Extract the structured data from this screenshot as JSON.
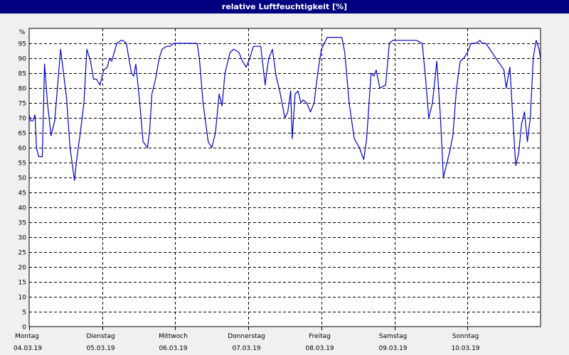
{
  "window": {
    "title": "relative Luftfeuchtigkeit [%]"
  },
  "colors": {
    "background": "#f0f0f0",
    "title_bar": "#000080",
    "plot_background": "#ffffff",
    "line": "#0000cc",
    "grid": "#000000"
  },
  "chart_data": {
    "type": "line",
    "title": "relative Luftfeuchtigkeit [%]",
    "xlabel": "",
    "ylabel": "%",
    "ylim": [
      0,
      100
    ],
    "xlim": [
      0,
      7
    ],
    "y_ticks": [
      0,
      5,
      10,
      15,
      20,
      25,
      30,
      35,
      40,
      45,
      50,
      55,
      60,
      65,
      70,
      75,
      80,
      85,
      90,
      95
    ],
    "x_ticks": [
      {
        "x": 0,
        "day": "Montag",
        "date": "04.03.19"
      },
      {
        "x": 1,
        "day": "Dienstag",
        "date": "05.03.19"
      },
      {
        "x": 2,
        "day": "Mittwoch",
        "date": "06.03.19"
      },
      {
        "x": 3,
        "day": "Donnerstag",
        "date": "07.03.19"
      },
      {
        "x": 4,
        "day": "Freitag",
        "date": "08.03.19"
      },
      {
        "x": 5,
        "day": "Samstag",
        "date": "09.03.19"
      },
      {
        "x": 6,
        "day": "Sonntag",
        "date": "10.03.19"
      }
    ],
    "grid": true,
    "legend": "none",
    "series": [
      {
        "x": [
          0,
          0.02,
          0.05,
          0.08,
          0.1,
          0.13,
          0.18,
          0.21,
          0.25,
          0.3,
          0.35,
          0.43,
          0.47,
          0.51,
          0.56,
          0.62,
          0.65,
          0.7,
          0.75,
          0.79,
          0.84,
          0.88,
          0.92,
          0.97,
          1.02,
          1.07,
          1.1,
          1.13,
          1.2,
          1.26,
          1.28,
          1.33,
          1.4,
          1.43,
          1.46,
          1.51,
          1.56,
          1.62,
          1.65,
          1.68,
          1.73,
          1.78,
          1.82,
          1.88,
          1.93,
          1.98,
          2.03,
          2.08,
          2.12,
          2.17,
          2.3,
          2.33,
          2.38,
          2.45,
          2.5,
          2.55,
          2.6,
          2.64,
          2.68,
          2.75,
          2.8,
          2.87,
          2.92,
          2.97,
          3.02,
          3.07,
          3.12,
          3.17,
          3.23,
          3.25,
          3.28,
          3.33,
          3.38,
          3.43,
          3.5,
          3.54,
          3.58,
          3.6,
          3.64,
          3.68,
          3.72,
          3.75,
          3.8,
          3.85,
          3.9,
          3.95,
          4.0,
          4.08,
          4.12,
          4.18,
          4.28,
          4.32,
          4.38,
          4.45,
          4.52,
          4.58,
          4.62,
          4.68,
          4.72,
          4.75,
          4.8,
          4.88,
          4.93,
          4.98,
          5.03,
          5.08,
          5.12,
          5.17,
          5.3,
          5.38,
          5.42,
          5.47,
          5.52,
          5.58,
          5.63,
          5.67,
          5.72,
          5.76,
          5.8,
          5.85,
          5.9,
          5.95,
          6.0,
          6.05,
          6.08,
          6.12,
          6.17,
          6.2,
          6.25,
          6.5,
          6.53,
          6.58,
          6.62,
          6.66,
          6.7,
          6.74,
          6.78,
          6.82,
          6.86,
          6.9,
          6.94,
          6.98,
          7.0
        ],
        "values": [
          71,
          69,
          69,
          71,
          60,
          57,
          57,
          88,
          75,
          64,
          69,
          93,
          85,
          77,
          60,
          49,
          56,
          65,
          75,
          93,
          89,
          83,
          83,
          81,
          86,
          87,
          90,
          89,
          95,
          96,
          96,
          95,
          85,
          84,
          88,
          76,
          62,
          60,
          66,
          78,
          83,
          90,
          93,
          94,
          94,
          95,
          95,
          95,
          95,
          95,
          95,
          90,
          75,
          62,
          60,
          65,
          78,
          74,
          85,
          92,
          93,
          92,
          89,
          87,
          90,
          94,
          94,
          94,
          81,
          85,
          90,
          93,
          84,
          79,
          70,
          72,
          79,
          63,
          78,
          79,
          75,
          76,
          75,
          72,
          75,
          85,
          93,
          97,
          97,
          97,
          97,
          92,
          75,
          63,
          60,
          56,
          63,
          85,
          84,
          86,
          80,
          81,
          95,
          96,
          96,
          96,
          96,
          96,
          96,
          95,
          85,
          70,
          75,
          89,
          70,
          50,
          55,
          59,
          64,
          80,
          89,
          90,
          92,
          95,
          95,
          95,
          96,
          95,
          95,
          86,
          80,
          87,
          70,
          54,
          58,
          68,
          72,
          62,
          70,
          90,
          96,
          93,
          90
        ]
      }
    ]
  }
}
